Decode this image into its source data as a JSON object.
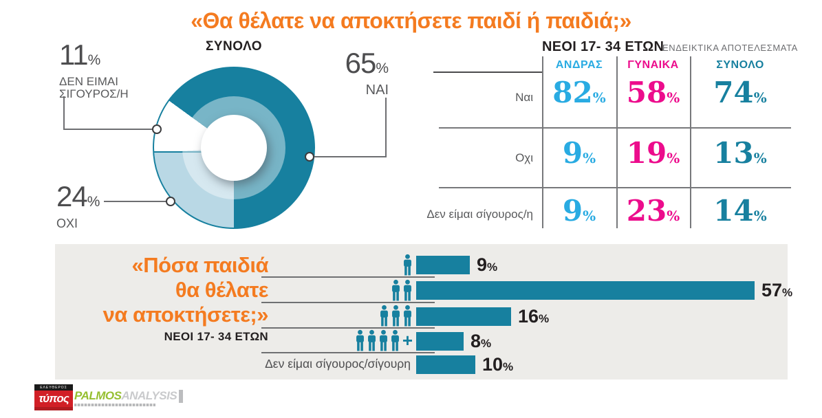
{
  "title": "«Θα θέλατε να αποκτήσετε παιδί ή παιδιά;»",
  "percent_sign": "%",
  "colors": {
    "orange": "#f47b20",
    "teal": "#17809f",
    "light_blue": "#b9d8e5",
    "cyan": "#29abe2",
    "magenta": "#ec0c8c",
    "panel_gray": "#edece9"
  },
  "donut": {
    "title": "ΣΥΝΟΛΟ",
    "slices": [
      {
        "label": "ΝΑΙ",
        "value": 65
      },
      {
        "label": "ΟΧΙ",
        "value": 24
      },
      {
        "label": "ΔΕΝ ΕΙΜΑΙ ΣΙΓΟΥΡΟΣ/Η",
        "value": 11
      }
    ]
  },
  "table": {
    "title": "ΝΕΟΙ 17- 34 ΕΤΩΝ",
    "subtitle": "ΕΝΔΕΙΚΤΙΚΑ ΑΠΟΤΕΛΕΣΜΑΤΑ",
    "columns": [
      "ΑΝΔΡΑΣ",
      "ΓΥΝΑΙΚΑ",
      "ΣΥΝΟΛΟ"
    ],
    "rows": [
      {
        "label": "Ναι",
        "values": [
          82,
          58,
          74
        ]
      },
      {
        "label": "Οχι",
        "values": [
          9,
          19,
          13
        ]
      },
      {
        "label": "Δεν είμαι σίγουρος/η",
        "values": [
          9,
          23,
          14
        ]
      }
    ]
  },
  "bar_section": {
    "question_lines": [
      "«Πόσα παιδιά",
      "θα θέλατε",
      "να αποκτήσετε;»"
    ],
    "subtitle": "ΝΕΟΙ 17- 34 ΕΤΩΝ",
    "plus_sign": "+",
    "rows": [
      {
        "icons": 1,
        "plus": false,
        "value": 9
      },
      {
        "icons": 2,
        "plus": false,
        "value": 57
      },
      {
        "icons": 3,
        "plus": false,
        "value": 16
      },
      {
        "icons": 4,
        "plus": true,
        "value": 8
      },
      {
        "icons": 0,
        "plus": false,
        "label": "Δεν είμαι σίγουρος/σίγουρη",
        "value": 10
      }
    ]
  },
  "footer": {
    "typos": {
      "topline": "ΕΛΕΥΘΕΡΟΣ",
      "name": "τύπος"
    },
    "palmos": {
      "name": "PALMOS",
      "suffix": "ANALYSIS"
    }
  },
  "chart_data": [
    {
      "type": "pie",
      "donut": true,
      "title": "ΣΥΝΟΛΟ",
      "labels": [
        "ΝΑΙ",
        "ΟΧΙ",
        "ΔΕΝ ΕΙΜΑΙ ΣΙΓΟΥΡΟΣ/Η"
      ],
      "values": [
        65,
        24,
        11
      ],
      "unit": "%",
      "colors": [
        "#17809f",
        "#b9d8e5",
        "#ffffff"
      ]
    },
    {
      "type": "table",
      "title": "ΝΕΟΙ 17- 34 ΕΤΩΝ",
      "subtitle": "ΕΝΔΕΙΚΤΙΚΑ ΑΠΟΤΕΛΕΣΜΑΤΑ",
      "columns": [
        "ΑΝΔΡΑΣ",
        "ΓΥΝΑΙΚΑ",
        "ΣΥΝΟΛΟ"
      ],
      "rows": [
        {
          "label": "Ναι",
          "values": [
            82,
            58,
            74
          ]
        },
        {
          "label": "Οχι",
          "values": [
            9,
            19,
            13
          ]
        },
        {
          "label": "Δεν είμαι σίγουρος/η",
          "values": [
            9,
            23,
            14
          ]
        }
      ],
      "unit": "%"
    },
    {
      "type": "bar",
      "orientation": "horizontal",
      "title": "«Πόσα παιδιά θα θέλατε να αποκτήσετε;»",
      "subtitle": "ΝΕΟΙ 17- 34 ΕΤΩΝ",
      "categories": [
        "1 παιδί",
        "2 παιδιά",
        "3 παιδιά",
        "4+ παιδιά",
        "Δεν είμαι σίγουρος/σίγουρη"
      ],
      "values": [
        9,
        57,
        16,
        8,
        10
      ],
      "unit": "%",
      "bar_color": "#17809f"
    }
  ]
}
